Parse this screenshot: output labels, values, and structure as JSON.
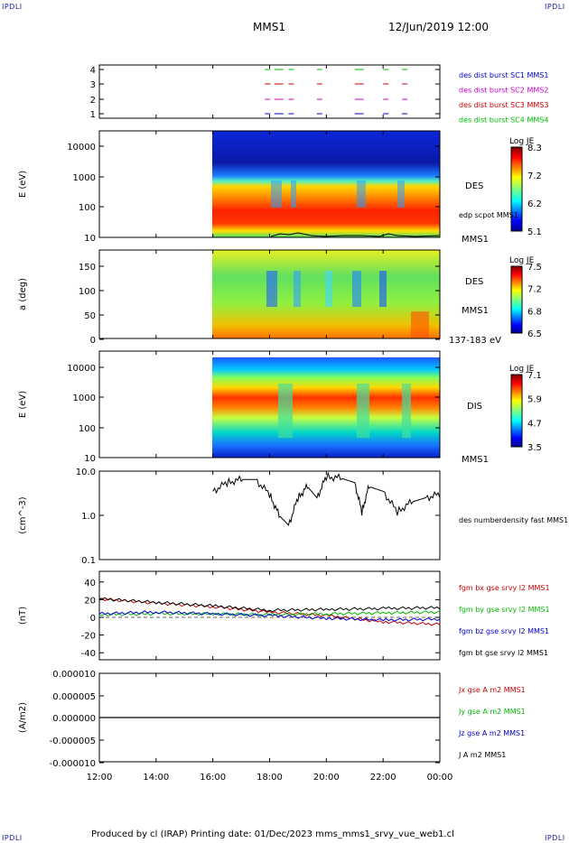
{
  "corners": {
    "tl": "IPDLI",
    "tr": "IPDLI",
    "bl": "IPDLI",
    "br": "IPDLI"
  },
  "header": {
    "spacecraft": "MMS1",
    "date": "12/Jun/2019 12:00"
  },
  "footer": {
    "text": "Produced by cl (IRAP)   Printing date: 01/Dec/2023   mms_mms1_srvy_vue_web1.cl"
  },
  "time_axis": {
    "ticks": [
      "12:00",
      "14:00",
      "16:00",
      "18:00",
      "20:00",
      "22:00",
      "00:00"
    ]
  },
  "panels": {
    "burst": {
      "ticks": [
        "1",
        "2",
        "3",
        "4"
      ],
      "legend": [
        {
          "text": "des dist burst SC1 MMS1",
          "color": "#0000cc"
        },
        {
          "text": "des dist burst SC2 MMS2",
          "color": "#cc00cc"
        },
        {
          "text": "des dist burst SC3 MMS3",
          "color": "#cc0000"
        },
        {
          "text": "des dist burst SC4 MMS4",
          "color": "#00bb00"
        }
      ]
    },
    "des_energy": {
      "ylabel": "E (eV)",
      "ticks": [
        "10",
        "100",
        "1000",
        "10000"
      ],
      "label1": "DES",
      "label2": "edp scpot MMS1",
      "label3": "MMS1",
      "cbar": {
        "title": "Log JE",
        "ticks": [
          "8.3",
          "7.2",
          "6.2",
          "5.1"
        ]
      }
    },
    "des_pitch": {
      "ylabel": "a (deg)",
      "ticks": [
        "0",
        "50",
        "100",
        "150"
      ],
      "label1": "DES",
      "label2": "MMS1",
      "label3": "137-183 eV",
      "cbar": {
        "title": "Log JE",
        "ticks": [
          "7.5",
          "7.2",
          "6.8",
          "6.5"
        ]
      }
    },
    "dis_energy": {
      "ylabel": "E (eV)",
      "ticks": [
        "10",
        "100",
        "1000",
        "10000"
      ],
      "label1": "DIS",
      "label3": "MMS1",
      "cbar": {
        "title": "Log JE",
        "ticks": [
          "7.1",
          "5.9",
          "4.7",
          "3.5"
        ]
      }
    },
    "density": {
      "ylabel": "(cm^-3)",
      "ticks": [
        "0.1",
        "1.0",
        "10.0"
      ],
      "legend": "des numberdensity fast MMS1"
    },
    "fgm": {
      "ylabel": "(nT)",
      "ticks": [
        "-40",
        "-20",
        "0",
        "20",
        "40"
      ],
      "legend": [
        {
          "text": "fgm bx gse srvy l2 MMS1",
          "color": "#cc0000"
        },
        {
          "text": "fgm by gse srvy l2 MMS1",
          "color": "#00bb00"
        },
        {
          "text": "fgm bz gse srvy l2 MMS1",
          "color": "#0000cc"
        },
        {
          "text": "fgm bt gse srvy l2 MMS1",
          "color": "#000000"
        }
      ]
    },
    "current": {
      "ylabel": "(A/m2)",
      "ticks": [
        "-0.000010",
        "-0.000005",
        "0.000000",
        "0.000005",
        "0.000010"
      ],
      "legend": [
        {
          "text": "Jx gse A m2 MMS1",
          "color": "#cc0000"
        },
        {
          "text": "Jy gse A m2 MMS1",
          "color": "#00bb00"
        },
        {
          "text": "Jz gse A m2 MMS1",
          "color": "#0000cc"
        },
        {
          "text": "J A m2 MMS1",
          "color": "#000000"
        }
      ]
    }
  },
  "chart_data": {
    "type": "line",
    "x_range": [
      "12:00",
      "00:00"
    ],
    "density_cm3": {
      "ylim": [
        0.1,
        10
      ],
      "scale": "log",
      "t": [
        "16:00",
        "16:30",
        "17:00",
        "17:30",
        "18:00",
        "18:20",
        "18:40",
        "19:00",
        "19:20",
        "19:40",
        "20:00",
        "20:30",
        "21:00",
        "21:15",
        "21:30",
        "22:00",
        "22:30",
        "23:00",
        "23:30",
        "00:00"
      ],
      "values": [
        3.5,
        5.5,
        6.5,
        6.5,
        3.0,
        1.0,
        0.6,
        2.5,
        4.5,
        2.5,
        7.5,
        7.0,
        5.5,
        1.2,
        4.5,
        3.5,
        1.2,
        2.0,
        2.5,
        3.0
      ]
    },
    "fgm_nT": {
      "ylim": [
        -50,
        50
      ],
      "t": [
        "12:00",
        "14:00",
        "16:00",
        "18:00",
        "20:00",
        "22:00",
        "00:00"
      ],
      "series": [
        {
          "name": "fgm bx gse srvy l2 MMS1",
          "values": [
            21,
            16,
            12,
            6,
            2,
            -5,
            -8
          ]
        },
        {
          "name": "fgm by gse srvy l2 MMS1",
          "values": [
            3,
            4,
            4,
            3,
            4,
            5,
            6
          ]
        },
        {
          "name": "fgm bz gse srvy l2 MMS1",
          "values": [
            4,
            6,
            4,
            2,
            -1,
            -3,
            -2
          ]
        },
        {
          "name": "fgm bt gse srvy l2 MMS1",
          "values": [
            21,
            17,
            13,
            8,
            9,
            10,
            11
          ]
        }
      ]
    },
    "current_Am2": {
      "ylim": [
        -1e-05,
        1e-05
      ],
      "values": [
        0,
        0,
        0,
        0,
        0,
        0,
        0
      ]
    },
    "burst_intervals": {
      "t": [
        "17:50",
        "18:10",
        "18:40",
        "19:40",
        "21:00",
        "22:00",
        "22:40"
      ]
    }
  }
}
